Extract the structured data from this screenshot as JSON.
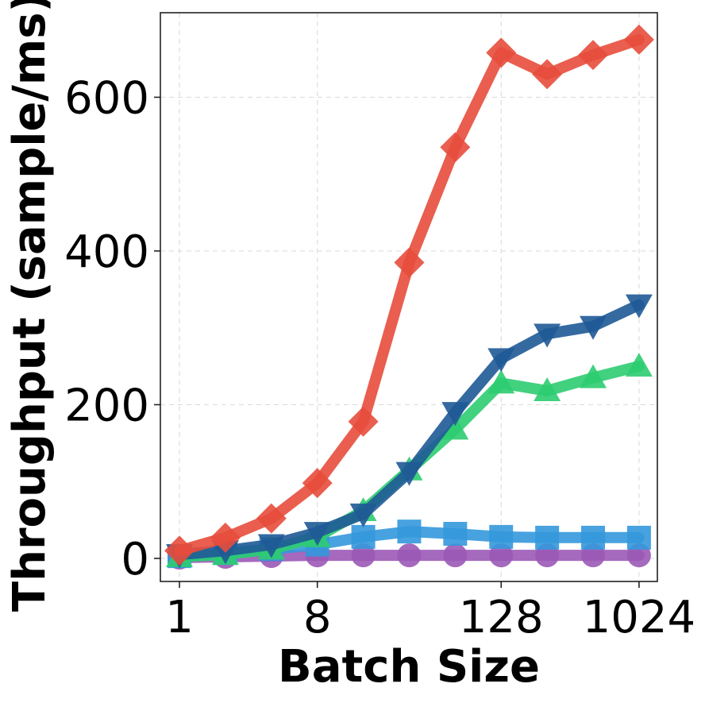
{
  "chart_data": {
    "type": "line",
    "title": "",
    "xlabel": "Batch Size",
    "ylabel": "Throughput (sample/ms)",
    "x_scale": "log2",
    "x": [
      1,
      2,
      4,
      8,
      16,
      32,
      64,
      128,
      256,
      512,
      1024
    ],
    "xlim": [
      0.75,
      1350
    ],
    "ylim": [
      -30,
      710
    ],
    "xticks": [
      1,
      8,
      128,
      1024
    ],
    "xtick_labels": [
      "1",
      "8",
      "128",
      "1024"
    ],
    "yticks": [
      0,
      200,
      400,
      600
    ],
    "ytick_labels": [
      "0",
      "200",
      "400",
      "600"
    ],
    "grid": true,
    "legend": false,
    "series": [
      {
        "color": "#9b59b6",
        "marker": "circle",
        "values": [
          1,
          2,
          3,
          4,
          4,
          4,
          4,
          4,
          4,
          4,
          4
        ]
      },
      {
        "color": "#3498db",
        "marker": "square",
        "values": [
          3,
          7,
          12,
          18,
          28,
          35,
          32,
          28,
          27,
          27,
          27
        ]
      },
      {
        "color": "#2ecc71",
        "marker": "triangle-up",
        "values": [
          2,
          5,
          12,
          28,
          62,
          115,
          168,
          228,
          218,
          235,
          250
        ]
      },
      {
        "color": "#1f5a96",
        "marker": "triangle-down",
        "values": [
          5,
          10,
          18,
          34,
          58,
          112,
          190,
          260,
          292,
          302,
          330
        ]
      },
      {
        "color": "#e74c3c",
        "marker": "diamond",
        "values": [
          10,
          27,
          52,
          98,
          178,
          385,
          535,
          658,
          630,
          655,
          675
        ]
      }
    ]
  }
}
